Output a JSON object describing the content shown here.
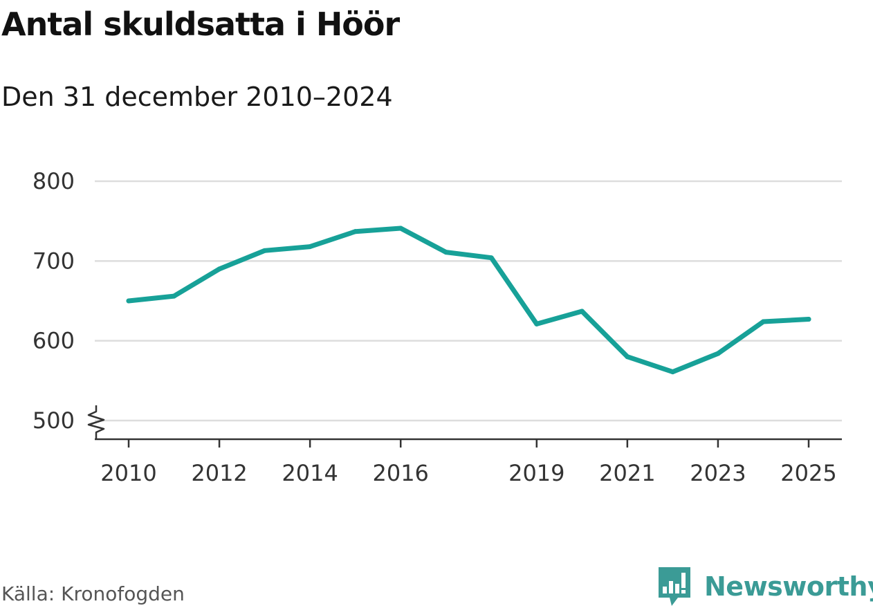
{
  "header": {
    "title": "Antal skuldsatta i Höör",
    "subtitle": "Den 31 december 2010–2024"
  },
  "footer": {
    "source": "Källa: Kronofogden",
    "brand": "Newsworthy",
    "brand_icon": "newsworthy-logo-icon",
    "brand_color": "#3b9b96"
  },
  "chart_data": {
    "type": "line",
    "title": "Antal skuldsatta i Höör",
    "subtitle": "Den 31 december 2010–2024",
    "xlabel": "",
    "ylabel": "",
    "x": [
      2010,
      2011,
      2012,
      2013,
      2014,
      2015,
      2016,
      2017,
      2018,
      2019,
      2020,
      2021,
      2022,
      2023,
      2024,
      2025
    ],
    "values": [
      650,
      656,
      690,
      713,
      718,
      737,
      741,
      711,
      704,
      621,
      637,
      580,
      561,
      584,
      624,
      627
    ],
    "ylim": [
      500,
      800
    ],
    "xlim": [
      2010,
      2025
    ],
    "y_ticks": [
      500,
      600,
      700,
      800
    ],
    "x_ticks": [
      2010,
      2012,
      2014,
      2016,
      2019,
      2021,
      2023,
      2025
    ],
    "y_axis_break": true,
    "grid": true,
    "line_color": "#17a198",
    "grid_color": "#dddddd",
    "axis_color": "#333333"
  }
}
